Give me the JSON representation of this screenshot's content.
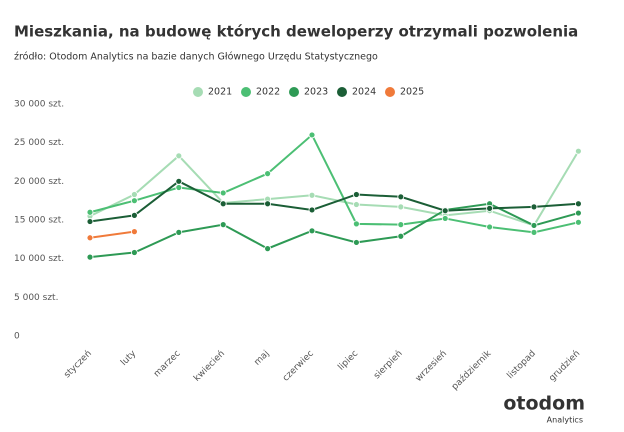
{
  "chart_data": {
    "type": "line",
    "title": "Mieszkania, na budowę których deweloperzy otrzymali pozwolenia",
    "subtitle": "źródło: Otodom Analytics na bazie danych Głównego Urzędu Statystycznego",
    "categories": [
      "styczeń",
      "luty",
      "marzec",
      "kwiecień",
      "maj",
      "czerwiec",
      "lipiec",
      "sierpień",
      "wrzesień",
      "październik",
      "listopad",
      "grudzień"
    ],
    "series": [
      {
        "name": "2021",
        "color": "#a6dcb4",
        "values": [
          15500,
          18300,
          23300,
          17200,
          17700,
          18200,
          17000,
          16700,
          15600,
          16200,
          14300,
          23900
        ]
      },
      {
        "name": "2022",
        "color": "#4cbf74",
        "values": [
          16000,
          17500,
          19200,
          18500,
          21000,
          26000,
          14500,
          14400,
          15200,
          14100,
          13400,
          14700
        ]
      },
      {
        "name": "2023",
        "color": "#2e9a55",
        "values": [
          10200,
          10800,
          13400,
          14400,
          11300,
          13600,
          12100,
          12900,
          16300,
          17100,
          14300,
          15900
        ]
      },
      {
        "name": "2024",
        "color": "#1b5e36",
        "values": [
          14800,
          15600,
          20000,
          17100,
          17100,
          16300,
          18300,
          18000,
          16200,
          16500,
          16700,
          17100
        ]
      },
      {
        "name": "2025",
        "color": "#f07a3a",
        "values": [
          12700,
          13500,
          null,
          null,
          null,
          null,
          null,
          null,
          null,
          null,
          null,
          null
        ]
      }
    ],
    "ylim": [
      0,
      30000
    ],
    "yticks": [
      0,
      {
        "value": 5000,
        "label": "5 000 szt."
      },
      {
        "value": 10000,
        "label": "10 000 szt."
      },
      {
        "value": 15000,
        "label": "15 000 szt."
      },
      {
        "value": 20000,
        "label": "20 000 szt."
      },
      {
        "value": 25000,
        "label": "25 000 szt."
      },
      {
        "value": 30000,
        "label": "30 000 szt."
      }
    ],
    "grid": false,
    "legend": "top",
    "logo": {
      "name": "otodom",
      "sub": "Analytics"
    }
  }
}
